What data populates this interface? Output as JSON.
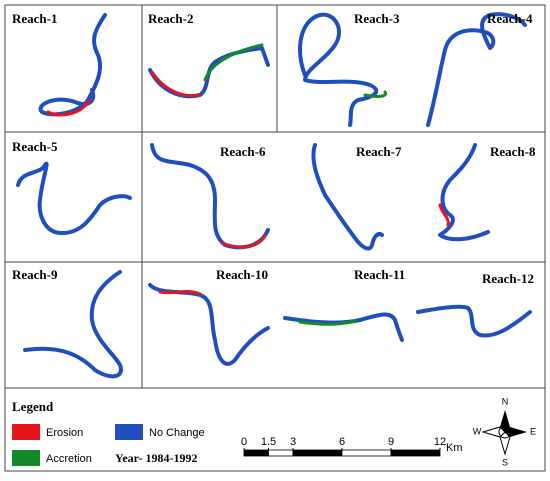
{
  "panels": [
    "Reach-1",
    "Reach-2",
    "Reach-3",
    "Reach-4",
    "Reach-5",
    "Reach-6",
    "Reach-7",
    "Reach-8",
    "Reach-9",
    "Reach-10",
    "Reach-11",
    "Reach-12"
  ],
  "legend": {
    "title": "Legend",
    "items": [
      "Erosion",
      "No Change",
      "Accretion"
    ],
    "year": "Year- 1984-1992"
  },
  "scale": {
    "ticks": [
      0,
      1.5,
      3,
      6,
      9,
      12
    ],
    "unit": "Km"
  },
  "compass": {
    "north": "N",
    "south": "S",
    "east": "E",
    "west": "W"
  }
}
